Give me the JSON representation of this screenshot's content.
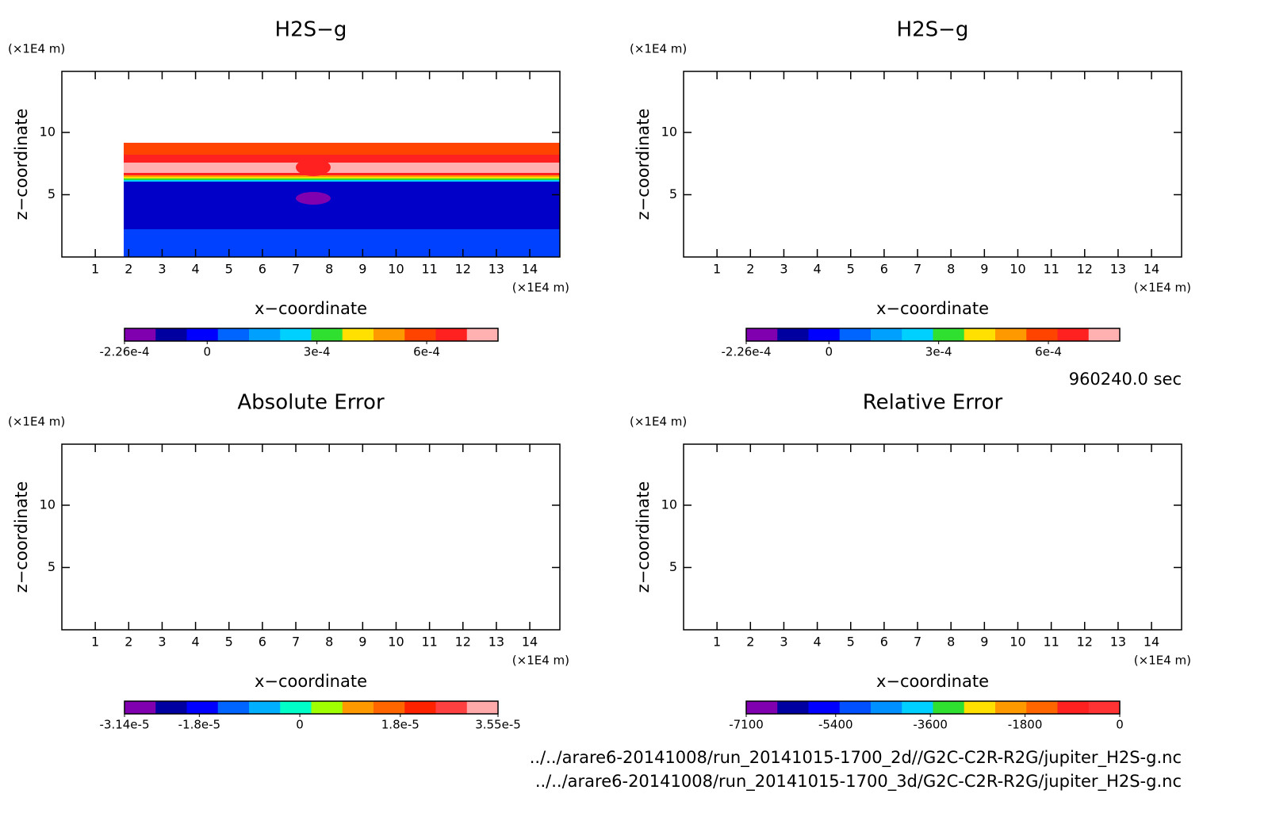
{
  "chart_data": [
    {
      "type": "contour",
      "title": "H2S−g",
      "xlabel": "x−coordinate",
      "ylabel": "z−coordinate",
      "xunit": "(×1E4 m)",
      "yunit": "(×1E4 m)",
      "xlim": [
        0,
        14.9
      ],
      "ylim": [
        0,
        14.9
      ],
      "xticks": [
        1,
        2,
        3,
        4,
        5,
        6,
        7,
        8,
        9,
        10,
        11,
        12,
        13,
        14
      ],
      "yticks": [
        5,
        10
      ],
      "colorbar": {
        "lim": [
          -0.000226,
          0.000795
        ],
        "colors": [
          "#8000b0",
          "#0000a0",
          "#0000ff",
          "#0064ff",
          "#00a0ff",
          "#00d0ff",
          "#30e030",
          "#ffe000",
          "#ff9900",
          "#ff4400",
          "#ff2020",
          "#ffb0b0"
        ],
        "ticks": [
          {
            "value": -0.000226,
            "label": "-2.26e-4"
          },
          0,
          {
            "value": 0.0003,
            "label": "3e-4"
          },
          {
            "value": 0.0006,
            "label": "6e-4"
          }
        ]
      }
    },
    {
      "type": "contour",
      "title": "H2S−g",
      "xlabel": "x−coordinate",
      "ylabel": "z−coordinate",
      "xunit": "(×1E4 m)",
      "yunit": "(×1E4 m)",
      "xlim": [
        0,
        14.9
      ],
      "ylim": [
        0,
        14.9
      ],
      "xticks": [
        1,
        2,
        3,
        4,
        5,
        6,
        7,
        8,
        9,
        10,
        11,
        12,
        13,
        14
      ],
      "yticks": [
        5,
        10
      ],
      "colorbar": {
        "lim": [
          -0.000226,
          0.000795
        ],
        "colors": [
          "#8000b0",
          "#0000a0",
          "#0000ff",
          "#0064ff",
          "#00a0ff",
          "#00d0ff",
          "#30e030",
          "#ffe000",
          "#ff9900",
          "#ff4400",
          "#ff2020",
          "#ffb0b0"
        ],
        "ticks": [
          {
            "value": -0.000226,
            "label": "-2.26e-4"
          },
          0,
          {
            "value": 0.0003,
            "label": "3e-4"
          },
          {
            "value": 0.0006,
            "label": "6e-4"
          }
        ]
      }
    },
    {
      "type": "contour",
      "title": "Absolute Error",
      "xlabel": "x−coordinate",
      "ylabel": "z−coordinate",
      "xunit": "(×1E4 m)",
      "yunit": "(×1E4 m)",
      "xlim": [
        0,
        14.9
      ],
      "ylim": [
        0,
        14.9
      ],
      "xticks": [
        1,
        2,
        3,
        4,
        5,
        6,
        7,
        8,
        9,
        10,
        11,
        12,
        13,
        14
      ],
      "yticks": [
        5,
        10
      ],
      "colorbar": {
        "lim": [
          -3.14e-05,
          3.55e-05
        ],
        "colors": [
          "#8000b0",
          "#0000a0",
          "#0000ff",
          "#0064ff",
          "#00b0ff",
          "#00ffc8",
          "#a0ff00",
          "#ff9900",
          "#ff6600",
          "#ff2200",
          "#ff4040",
          "#ffaaaa"
        ],
        "ticks": [
          {
            "value": -3.14e-05,
            "label": "-3.14e-5"
          },
          {
            "value": -1.8e-05,
            "label": "-1.8e-5"
          },
          0,
          {
            "value": 1.8e-05,
            "label": "1.8e-5"
          },
          {
            "value": 3.55e-05,
            "label": "3.55e-5"
          }
        ]
      }
    },
    {
      "type": "contour",
      "title": "Relative Error",
      "xlabel": "x−coordinate",
      "ylabel": "z−coordinate",
      "xunit": "(×1E4 m)",
      "yunit": "(×1E4 m)",
      "xlim": [
        0,
        14.9
      ],
      "ylim": [
        0,
        14.9
      ],
      "xticks": [
        1,
        2,
        3,
        4,
        5,
        6,
        7,
        8,
        9,
        10,
        11,
        12,
        13,
        14
      ],
      "yticks": [
        5,
        10
      ],
      "colorbar": {
        "lim": [
          -7100,
          0
        ],
        "colors": [
          "#8000b0",
          "#0000a0",
          "#0000ff",
          "#0050ff",
          "#0090ff",
          "#00d0ff",
          "#30e030",
          "#ffe000",
          "#ff9900",
          "#ff6600",
          "#ff2020",
          "#ff3333"
        ],
        "ticks": [
          -7100,
          -5400,
          -3600,
          -1800,
          0
        ]
      }
    }
  ],
  "time": "960240.0 sec",
  "files": [
    "../../arare6-20141008/run_20141015-1700_2d//G2C-C2R-R2G/jupiter_H2S-g.nc",
    "../../arare6-20141008/run_20141015-1700_3d/G2C-C2R-R2G/jupiter_H2S-g.nc"
  ]
}
